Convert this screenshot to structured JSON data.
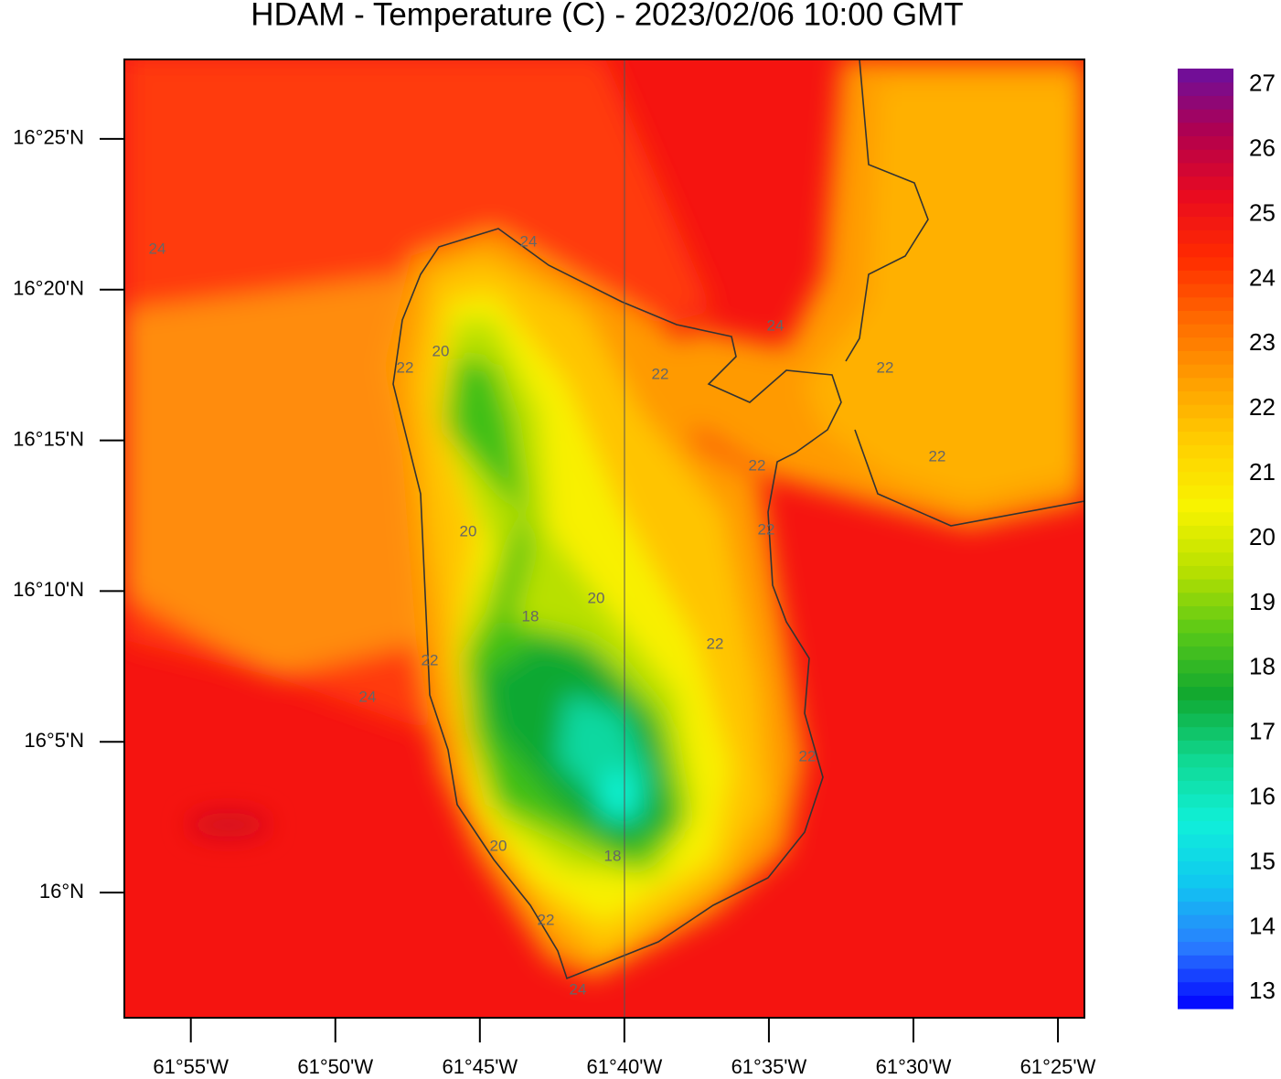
{
  "title": "HDAM - Temperature (C)  -  2023/02/06  10:00 GMT",
  "map": {
    "xlim": [
      -61.955,
      -61.4014
    ],
    "ylim": [
      15.9308,
      16.4606
    ],
    "xticks": [
      {
        "value": -61.916667,
        "label": "61°55'W"
      },
      {
        "value": -61.833333,
        "label": "61°50'W"
      },
      {
        "value": -61.75,
        "label": "61°45'W"
      },
      {
        "value": -61.666667,
        "label": "61°40'W"
      },
      {
        "value": -61.583333,
        "label": "61°35'W"
      },
      {
        "value": -61.5,
        "label": "61°30'W"
      },
      {
        "value": -61.416667,
        "label": "61°25'W"
      }
    ],
    "yticks": [
      {
        "value": 16.416667,
        "label": "16°25'N"
      },
      {
        "value": 16.333333,
        "label": "16°20'N"
      },
      {
        "value": 16.25,
        "label": "16°15'N"
      },
      {
        "value": 16.166667,
        "label": "16°10'N"
      },
      {
        "value": 16.083333,
        "label": "16°5'N"
      },
      {
        "value": 16,
        "label": "16°N"
      }
    ],
    "contour_labels": [
      "24",
      "24",
      "24",
      "22",
      "20",
      "22",
      "22",
      "22",
      "22",
      "20",
      "22",
      "20",
      "18",
      "22",
      "22",
      "24",
      "22",
      "20",
      "18",
      "22",
      "24"
    ]
  },
  "colorbar": {
    "lim": [
      12.75,
      27.25
    ],
    "ticks": [
      13,
      14,
      15,
      16,
      17,
      18,
      19,
      20,
      21,
      22,
      23,
      24,
      25,
      26,
      27
    ],
    "colors": [
      "#0000ff",
      "#2a7cff",
      "#10c8f0",
      "#10f0d8",
      "#10d890",
      "#10a830",
      "#58c818",
      "#b8e000",
      "#f8f400",
      "#ffd000",
      "#ffa000",
      "#ff6a00",
      "#ff2a00",
      "#e80a20",
      "#b00050",
      "#6a10a0"
    ]
  }
}
